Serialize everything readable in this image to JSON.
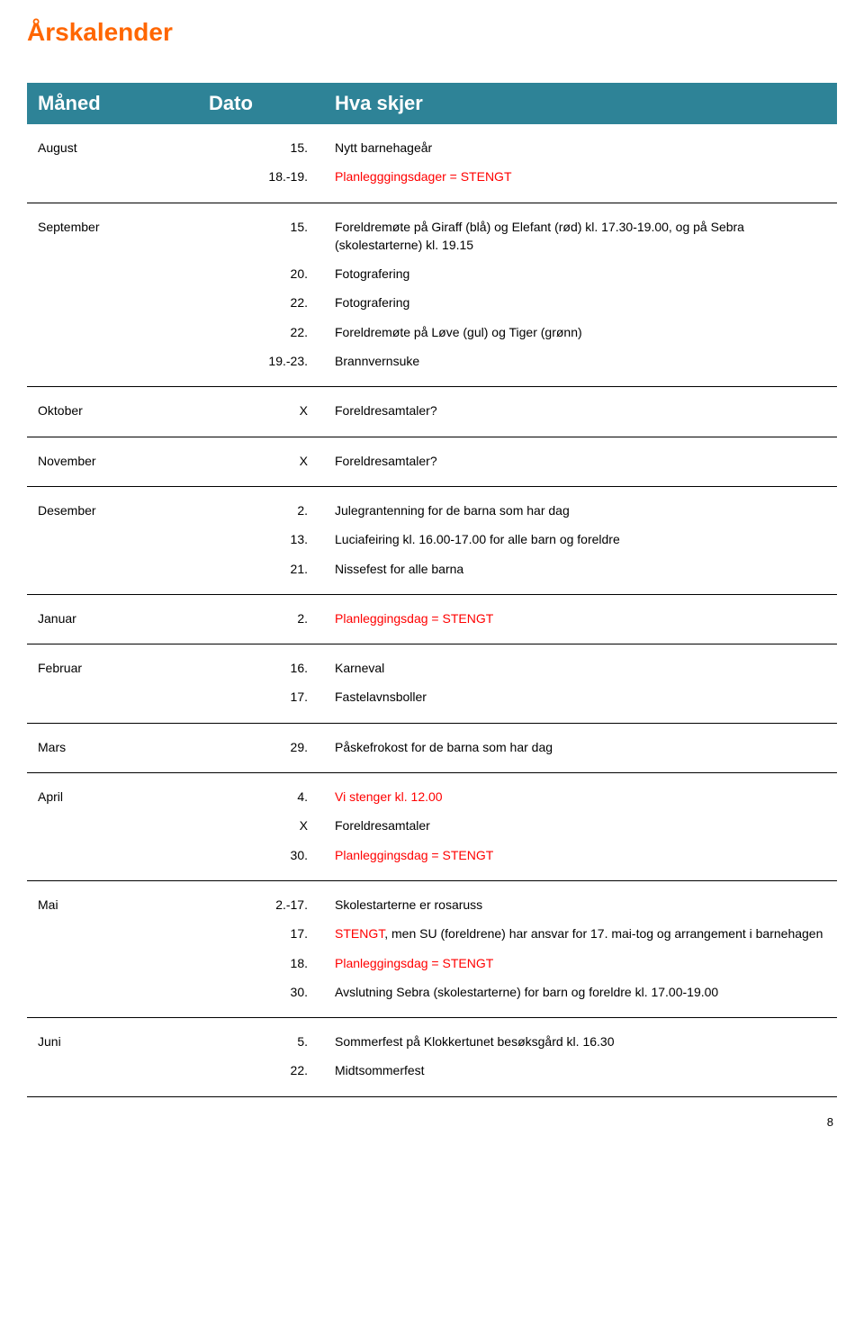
{
  "page_title": "Årskalender",
  "page_number": "8",
  "header": {
    "month": "Måned",
    "date": "Dato",
    "event": "Hva skjer"
  },
  "colors": {
    "title": "#ff6600",
    "header_bg": "#2e8397",
    "header_text": "#ffffff",
    "text": "#000000",
    "red": "#ff0000",
    "border": "#000000",
    "background": "#ffffff"
  },
  "typography": {
    "font_family": "Verdana, Arial, sans-serif",
    "title_fontsize": 28,
    "header_fontsize": 22,
    "body_fontsize": 14
  },
  "sections": [
    {
      "rows": [
        {
          "month": "August",
          "date": "15.",
          "event": "Nytt barnehageår",
          "red": false
        },
        {
          "month": "",
          "date": "18.-19.",
          "event": "Planlegggingsdager = STENGT",
          "red": true
        }
      ]
    },
    {
      "rows": [
        {
          "month": "September",
          "date": "15.",
          "event": "Foreldremøte på Giraff (blå) og Elefant (rød) kl. 17.30-19.00, og på Sebra (skolestarterne) kl. 19.15",
          "red": false
        },
        {
          "month": "",
          "date": "20.",
          "event": "Fotografering",
          "red": false
        },
        {
          "month": "",
          "date": "22.",
          "event": "Fotografering",
          "red": false
        },
        {
          "month": "",
          "date": "22.",
          "event": "Foreldremøte på Løve (gul) og Tiger (grønn)",
          "red": false
        },
        {
          "month": "",
          "date": "19.-23.",
          "event": "Brannvernsuke",
          "red": false
        }
      ]
    },
    {
      "rows": [
        {
          "month": "Oktober",
          "date": "X",
          "event": "Foreldresamtaler?",
          "red": false
        }
      ]
    },
    {
      "rows": [
        {
          "month": "November",
          "date": "X",
          "event": "Foreldresamtaler?",
          "red": false
        }
      ]
    },
    {
      "rows": [
        {
          "month": "Desember",
          "date": "2.",
          "event": "Julegrantenning for de barna som har dag",
          "red": false
        },
        {
          "month": "",
          "date": "13.",
          "event": "Luciafeiring kl. 16.00-17.00 for alle barn og foreldre",
          "red": false
        },
        {
          "month": "",
          "date": "21.",
          "event": "Nissefest for alle barna",
          "red": false
        }
      ]
    },
    {
      "rows": [
        {
          "month": "Januar",
          "date": "2.",
          "event": "Planleggingsdag = STENGT",
          "red": true
        }
      ]
    },
    {
      "rows": [
        {
          "month": "Februar",
          "date": "16.",
          "event": "Karneval",
          "red": false
        },
        {
          "month": "",
          "date": "17.",
          "event": "Fastelavnsboller",
          "red": false
        }
      ]
    },
    {
      "rows": [
        {
          "month": "Mars",
          "date": "29.",
          "event": "Påskefrokost for de barna som har dag",
          "red": false
        }
      ]
    },
    {
      "rows": [
        {
          "month": "April",
          "date": "4.",
          "event": "Vi stenger kl. 12.00",
          "red": true
        },
        {
          "month": "",
          "date": "X",
          "event": "Foreldresamtaler",
          "red": false
        },
        {
          "month": "",
          "date": "30.",
          "event": "Planleggingsdag = STENGT",
          "red": true
        }
      ]
    },
    {
      "rows": [
        {
          "month": "Mai",
          "date": "2.-17.",
          "event": "Skolestarterne er rosaruss",
          "red": false
        },
        {
          "month": "",
          "date": "17.",
          "event_parts": [
            {
              "text": "STENGT",
              "red": true
            },
            {
              "text": ", men SU (foreldrene) har ansvar for 17. mai-tog og arrangement i barnehagen",
              "red": false
            }
          ]
        },
        {
          "month": "",
          "date": "18.",
          "event": "Planleggingsdag = STENGT",
          "red": true
        },
        {
          "month": "",
          "date": "30.",
          "event": "Avslutning Sebra (skolestarterne) for barn og foreldre kl. 17.00-19.00",
          "red": false
        }
      ]
    },
    {
      "rows": [
        {
          "month": "Juni",
          "date": "5.",
          "event": "Sommerfest på Klokkertunet besøksgård kl. 16.30",
          "red": false
        },
        {
          "month": "",
          "date": "22.",
          "event": "Midtsommerfest",
          "red": false
        }
      ]
    }
  ]
}
